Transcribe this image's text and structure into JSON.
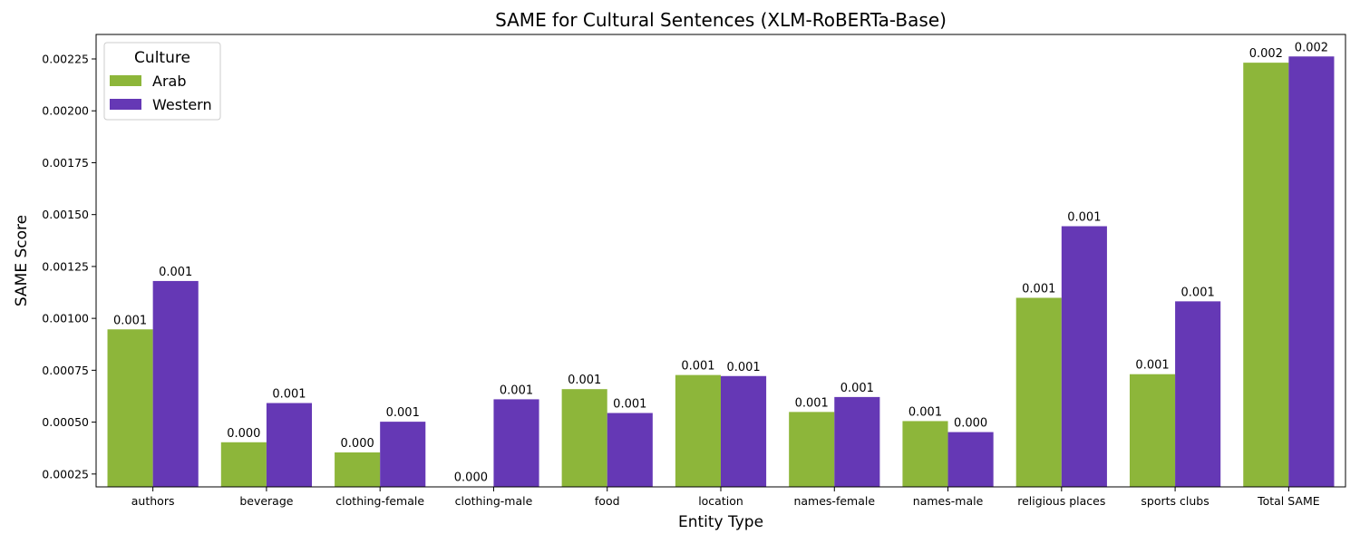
{
  "chart_data": {
    "type": "bar",
    "title": "SAME for Cultural Sentences (XLM-RoBERTa-Base)",
    "xlabel": "Entity Type",
    "ylabel": "SAME Score",
    "categories": [
      "authors",
      "beverage",
      "clothing-female",
      "clothing-male",
      "food",
      "location",
      "names-female",
      "names-male",
      "religious places",
      "sports clubs",
      "Total SAME"
    ],
    "series": [
      {
        "name": "Arab",
        "color": "#8db63a",
        "values": [
          0.000947,
          0.000403,
          0.000354,
          0.00019,
          0.000659,
          0.000727,
          0.000549,
          0.000505,
          0.001099,
          0.000731,
          0.002232
        ],
        "labels": [
          "0.001",
          "0.000",
          "0.000",
          "0.000",
          "0.001",
          "0.001",
          "0.001",
          "0.001",
          "0.001",
          "0.001",
          "0.002"
        ]
      },
      {
        "name": "Western",
        "color": "#6538b5",
        "values": [
          0.00118,
          0.000592,
          0.000502,
          0.00061,
          0.000544,
          0.000722,
          0.000621,
          0.000452,
          0.001444,
          0.001082,
          0.002262
        ],
        "labels": [
          "0.001",
          "0.001",
          "0.001",
          "0.001",
          "0.001",
          "0.001",
          "0.001",
          "0.000",
          "0.001",
          "0.001",
          "0.002"
        ]
      }
    ],
    "ylim": [
      0.000188,
      0.002368
    ],
    "yticks": [
      0.00025,
      0.0005,
      0.00075,
      0.001,
      0.00125,
      0.0015,
      0.00175,
      0.002,
      0.00225
    ],
    "ytick_labels": [
      "0.00025",
      "0.00050",
      "0.00075",
      "0.00100",
      "0.00125",
      "0.00150",
      "0.00175",
      "0.00200",
      "0.00225"
    ],
    "grid": false,
    "legend": {
      "title": "Culture",
      "position": "top-left"
    }
  }
}
